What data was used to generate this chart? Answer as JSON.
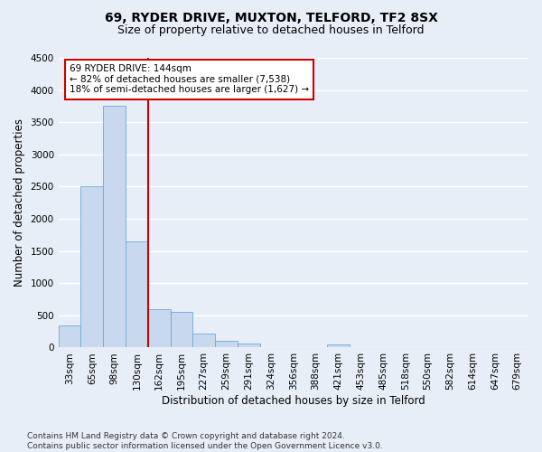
{
  "title": "69, RYDER DRIVE, MUXTON, TELFORD, TF2 8SX",
  "subtitle": "Size of property relative to detached houses in Telford",
  "xlabel": "Distribution of detached houses by size in Telford",
  "ylabel": "Number of detached properties",
  "categories": [
    "33sqm",
    "65sqm",
    "98sqm",
    "130sqm",
    "162sqm",
    "195sqm",
    "227sqm",
    "259sqm",
    "291sqm",
    "324sqm",
    "356sqm",
    "388sqm",
    "421sqm",
    "453sqm",
    "485sqm",
    "518sqm",
    "550sqm",
    "582sqm",
    "614sqm",
    "647sqm",
    "679sqm"
  ],
  "values": [
    350,
    2500,
    3750,
    1650,
    600,
    550,
    220,
    100,
    60,
    0,
    0,
    0,
    55,
    0,
    0,
    0,
    0,
    0,
    0,
    0,
    0
  ],
  "bar_color": "#c8d9ef",
  "bar_edge_color": "#6aaad4",
  "property_line_color": "#cc0000",
  "annotation_line1": "69 RYDER DRIVE: 144sqm",
  "annotation_line2": "← 82% of detached houses are smaller (7,538)",
  "annotation_line3": "18% of semi-detached houses are larger (1,627) →",
  "annotation_box_color": "white",
  "annotation_box_edge": "#cc0000",
  "ylim": [
    0,
    4500
  ],
  "yticks": [
    0,
    500,
    1000,
    1500,
    2000,
    2500,
    3000,
    3500,
    4000,
    4500
  ],
  "bg_color": "#e8eef8",
  "plot_bg_color": "#e8eef8",
  "grid_color": "white",
  "footer": "Contains HM Land Registry data © Crown copyright and database right 2024.\nContains public sector information licensed under the Open Government Licence v3.0.",
  "title_fontsize": 10,
  "subtitle_fontsize": 9,
  "xlabel_fontsize": 8.5,
  "ylabel_fontsize": 8.5,
  "annotation_fontsize": 7.5,
  "footer_fontsize": 6.5,
  "tick_fontsize": 7.5
}
